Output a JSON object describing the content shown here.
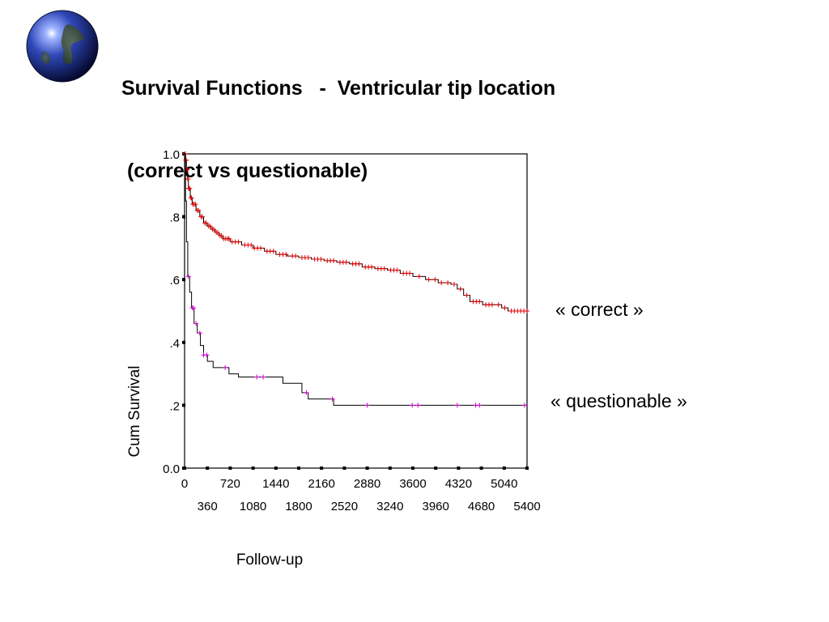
{
  "slide": {
    "title_line1": "Survival Functions   -  Ventricular tip location",
    "title_line2": " (correct vs questionable)",
    "series_label_correct": "« correct »",
    "series_label_questionable": "« questionable »"
  },
  "colors": {
    "correct_curve": "#000000",
    "correct_censor": "#e00000",
    "questionable_curve": "#000000",
    "questionable_censor": "#d000d0",
    "frame": "#000000"
  },
  "chart_data": {
    "type": "line",
    "title": "",
    "xlabel": "Follow-up",
    "ylabel": "Cum Survival",
    "xlim": [
      0,
      5400
    ],
    "ylim": [
      0,
      1
    ],
    "grid": false,
    "x_ticks_row1": [
      "0",
      "720",
      "1440",
      "2160",
      "2880",
      "3600",
      "4320",
      "5040"
    ],
    "x_ticks_row2": [
      "360",
      "1080",
      "1800",
      "2520",
      "3240",
      "3960",
      "4680",
      "5400"
    ],
    "x_tick_values_row1": [
      0,
      720,
      1440,
      2160,
      2880,
      3600,
      4320,
      5040
    ],
    "x_tick_values_row2": [
      360,
      1080,
      1800,
      2520,
      3240,
      3960,
      4680,
      5400
    ],
    "y_ticks": [
      "0.0",
      ".2",
      ".4",
      ".6",
      ".8",
      "1.0"
    ],
    "y_tick_values": [
      0,
      0.2,
      0.4,
      0.6,
      0.8,
      1.0
    ],
    "series": [
      {
        "name": "« correct »",
        "points": [
          [
            0,
            1.0
          ],
          [
            15,
            0.98
          ],
          [
            30,
            0.95
          ],
          [
            45,
            0.92
          ],
          [
            60,
            0.89
          ],
          [
            90,
            0.86
          ],
          [
            120,
            0.84
          ],
          [
            180,
            0.82
          ],
          [
            240,
            0.8
          ],
          [
            300,
            0.78
          ],
          [
            360,
            0.77
          ],
          [
            420,
            0.76
          ],
          [
            480,
            0.75
          ],
          [
            540,
            0.74
          ],
          [
            600,
            0.73
          ],
          [
            720,
            0.72
          ],
          [
            900,
            0.71
          ],
          [
            1080,
            0.7
          ],
          [
            1260,
            0.69
          ],
          [
            1440,
            0.68
          ],
          [
            1620,
            0.675
          ],
          [
            1800,
            0.67
          ],
          [
            2000,
            0.665
          ],
          [
            2200,
            0.66
          ],
          [
            2400,
            0.655
          ],
          [
            2600,
            0.65
          ],
          [
            2800,
            0.64
          ],
          [
            3000,
            0.635
          ],
          [
            3200,
            0.63
          ],
          [
            3400,
            0.62
          ],
          [
            3600,
            0.61
          ],
          [
            3800,
            0.6
          ],
          [
            4000,
            0.59
          ],
          [
            4200,
            0.585
          ],
          [
            4300,
            0.57
          ],
          [
            4400,
            0.55
          ],
          [
            4500,
            0.53
          ],
          [
            4700,
            0.52
          ],
          [
            4900,
            0.52
          ],
          [
            5000,
            0.51
          ],
          [
            5100,
            0.5
          ],
          [
            5400,
            0.5
          ]
        ],
        "censored_x": [
          5,
          10,
          20,
          25,
          35,
          40,
          50,
          55,
          65,
          70,
          80,
          100,
          110,
          130,
          150,
          170,
          200,
          220,
          260,
          280,
          320,
          340,
          380,
          400,
          440,
          460,
          500,
          520,
          560,
          580,
          620,
          650,
          680,
          700,
          750,
          800,
          850,
          950,
          1000,
          1050,
          1100,
          1150,
          1200,
          1300,
          1350,
          1400,
          1500,
          1550,
          1600,
          1700,
          1750,
          1850,
          1900,
          1950,
          2050,
          2100,
          2150,
          2250,
          2300,
          2350,
          2450,
          2500,
          2550,
          2650,
          2700,
          2750,
          2850,
          2900,
          2950,
          3050,
          3100,
          3150,
          3250,
          3300,
          3350,
          3450,
          3500,
          3550,
          3700,
          3850,
          3950,
          4050,
          4150,
          4250,
          4350,
          4450,
          4550,
          4600,
          4650,
          4750,
          4800,
          4850,
          4950,
          5050,
          5150,
          5200,
          5250,
          5300,
          5350,
          5400
        ]
      },
      {
        "name": "« questionable »",
        "points": [
          [
            0,
            1.0
          ],
          [
            15,
            0.85
          ],
          [
            30,
            0.72
          ],
          [
            50,
            0.61
          ],
          [
            80,
            0.56
          ],
          [
            110,
            0.51
          ],
          [
            150,
            0.46
          ],
          [
            200,
            0.43
          ],
          [
            250,
            0.39
          ],
          [
            300,
            0.36
          ],
          [
            360,
            0.34
          ],
          [
            450,
            0.32
          ],
          [
            700,
            0.3
          ],
          [
            850,
            0.29
          ],
          [
            1200,
            0.29
          ],
          [
            1550,
            0.27
          ],
          [
            1850,
            0.24
          ],
          [
            1950,
            0.22
          ],
          [
            2350,
            0.2
          ],
          [
            5400,
            0.2
          ]
        ],
        "censored_x": [
          60,
          120,
          140,
          180,
          240,
          300,
          350,
          640,
          1140,
          1240,
          1920,
          2330,
          2880,
          3590,
          3680,
          4300,
          4590,
          4650,
          5360
        ]
      }
    ]
  }
}
